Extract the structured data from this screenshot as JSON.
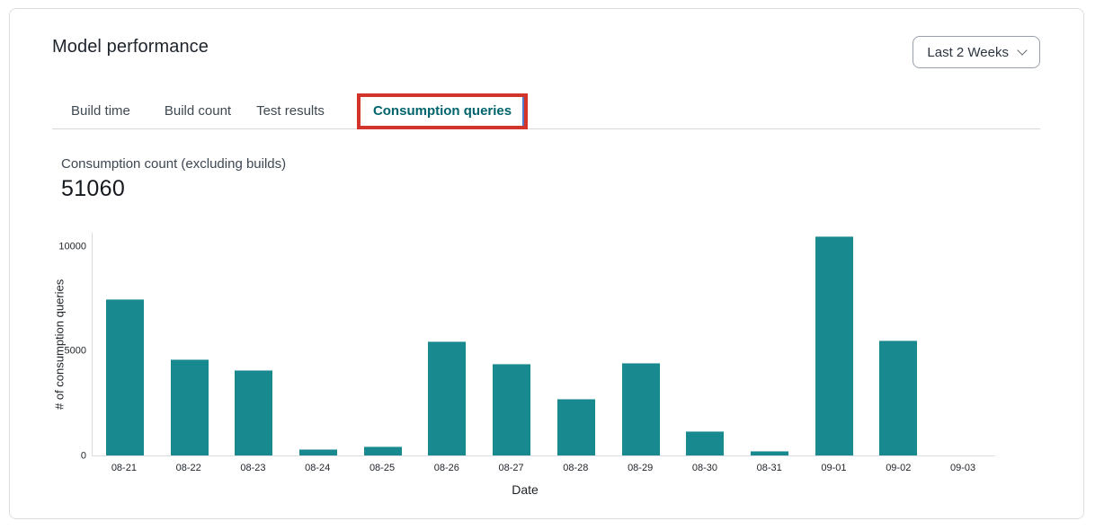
{
  "header": {
    "title": "Model performance",
    "date_range": {
      "value": "Last 2 Weeks",
      "icon": "chevron-down-icon"
    }
  },
  "tabs": [
    {
      "label": "Build time",
      "active": false
    },
    {
      "label": "Build count",
      "active": false
    },
    {
      "label": "Test results",
      "active": false
    },
    {
      "label": "Consumption queries",
      "active": true,
      "annotated": true
    }
  ],
  "metric": {
    "label": "Consumption count (excluding builds)",
    "value": "51060"
  },
  "chart_data": {
    "type": "bar",
    "categories": [
      "08-21",
      "08-22",
      "08-23",
      "08-24",
      "08-25",
      "08-26",
      "08-27",
      "08-28",
      "08-29",
      "08-30",
      "08-31",
      "09-01",
      "09-02",
      "09-03"
    ],
    "values": [
      7450,
      4600,
      4050,
      300,
      430,
      5450,
      4350,
      2700,
      4430,
      1150,
      200,
      10450,
      5500,
      0
    ],
    "title": "",
    "xlabel": "Date",
    "ylabel": "# of consumption queries",
    "ylim": [
      0,
      10000
    ],
    "y_ticks": [
      0,
      5000,
      10000
    ],
    "grid": false,
    "legend": false,
    "bar_color": "#18898f"
  },
  "colors": {
    "bar_teal": "#18898f",
    "active_tab_teal": "#00646c",
    "annotation_red": "#d2342c",
    "card_border": "#dcdfe2",
    "axis_line": "#d9dce0"
  }
}
